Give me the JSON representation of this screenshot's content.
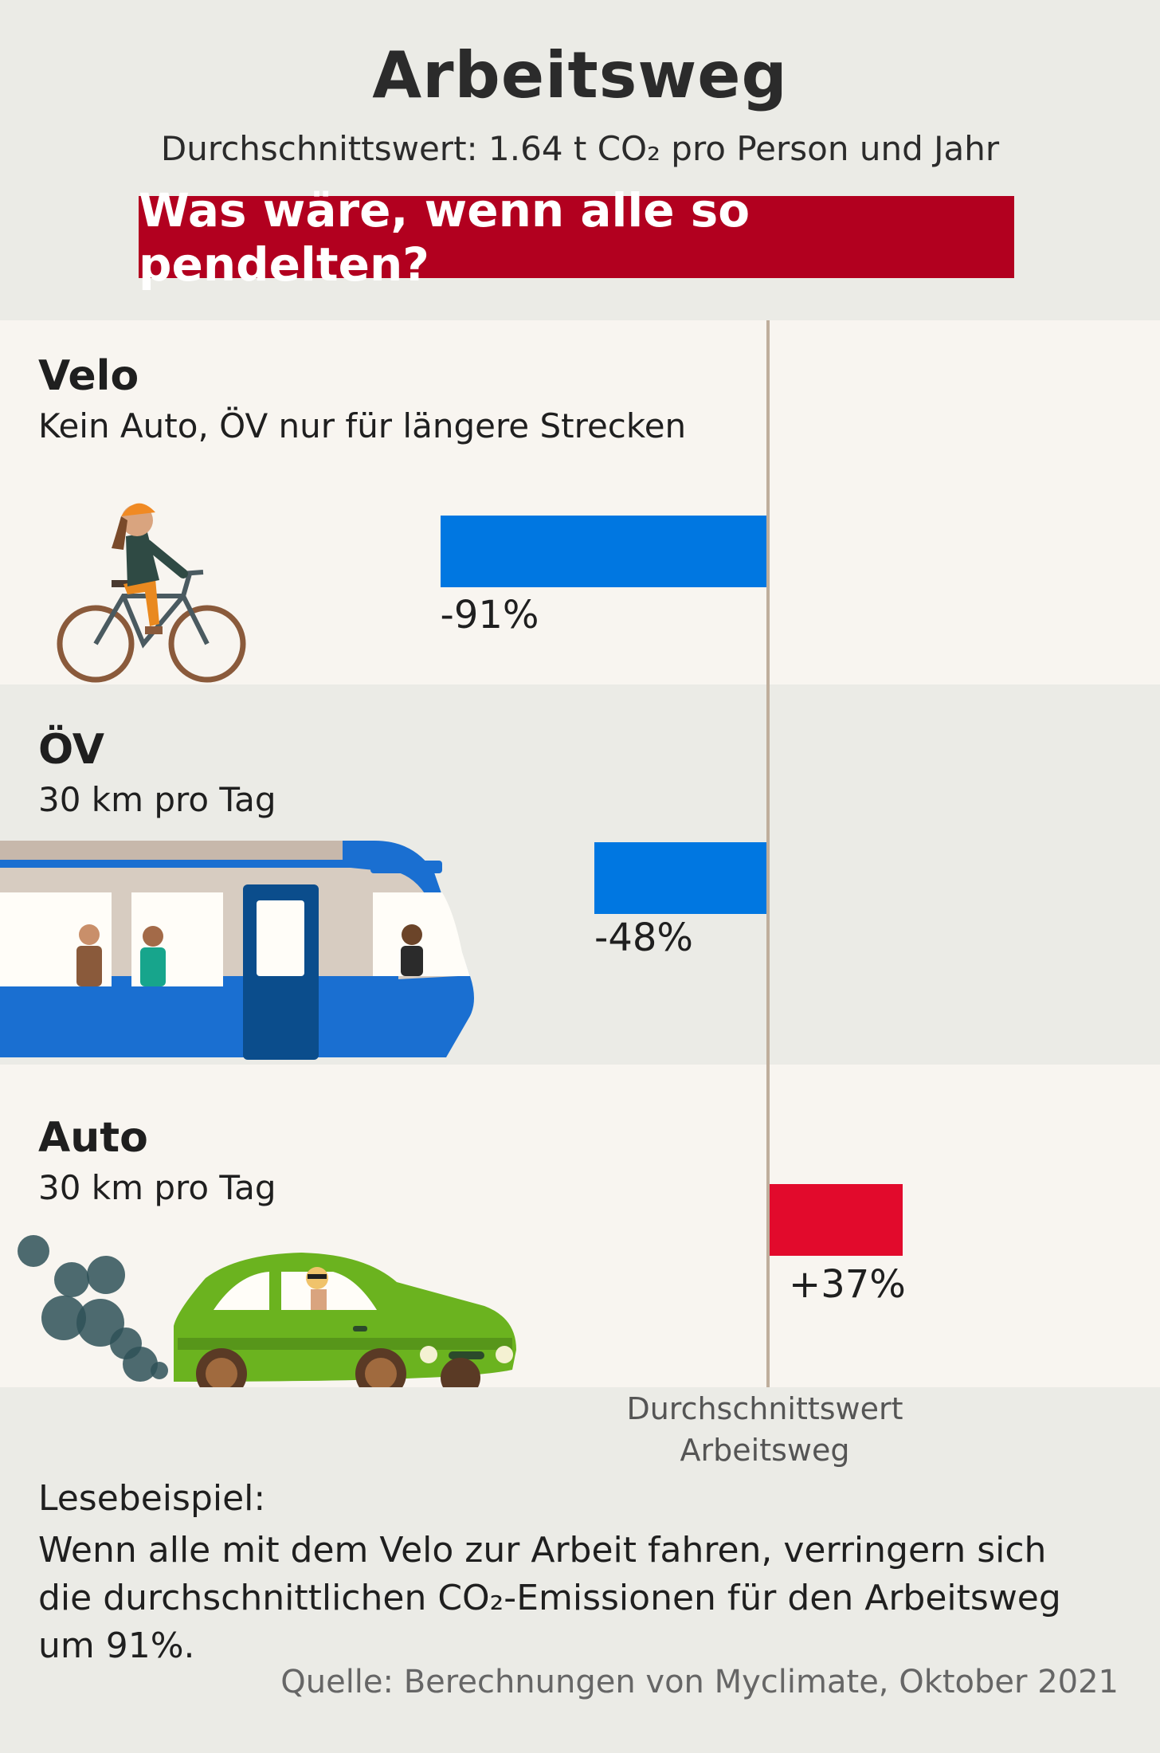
{
  "header": {
    "title": "Arbeitsweg",
    "subtitle": "Durchschnittswert: 1.64 t CO₂ pro Person und Jahr",
    "question": "Was wäre, wenn alle so pendelten?"
  },
  "chart_data": {
    "type": "bar",
    "orientation": "horizontal",
    "baseline_label": "Durchschnittswert Arbeitsweg",
    "categories": [
      "Velo",
      "ÖV",
      "Auto"
    ],
    "descriptions": [
      "Kein Auto, ÖV nur für längere Strecken",
      "30 km pro Tag",
      "30 km pro Tag"
    ],
    "values": [
      -91,
      -48,
      37
    ],
    "value_labels": [
      "-91%",
      "-48%",
      "+37%"
    ],
    "unit": "%",
    "colors": {
      "negative": "#0077e1",
      "positive": "#e20a2c"
    }
  },
  "baseline": {
    "line1": "Durchschnittswert",
    "line2": "Arbeitsweg"
  },
  "reading": {
    "title": "Lesebeispiel:",
    "text": "Wenn alle mit dem Velo zur Arbeit fahren, verringern sich die durchschnittlichen CO₂-Emissionen für den Arbeitsweg um 91%."
  },
  "source": "Quelle: Berechnungen von Myclimate, Oktober 2021",
  "icons": [
    "cyclist-icon",
    "train-icon",
    "car-icon"
  ]
}
